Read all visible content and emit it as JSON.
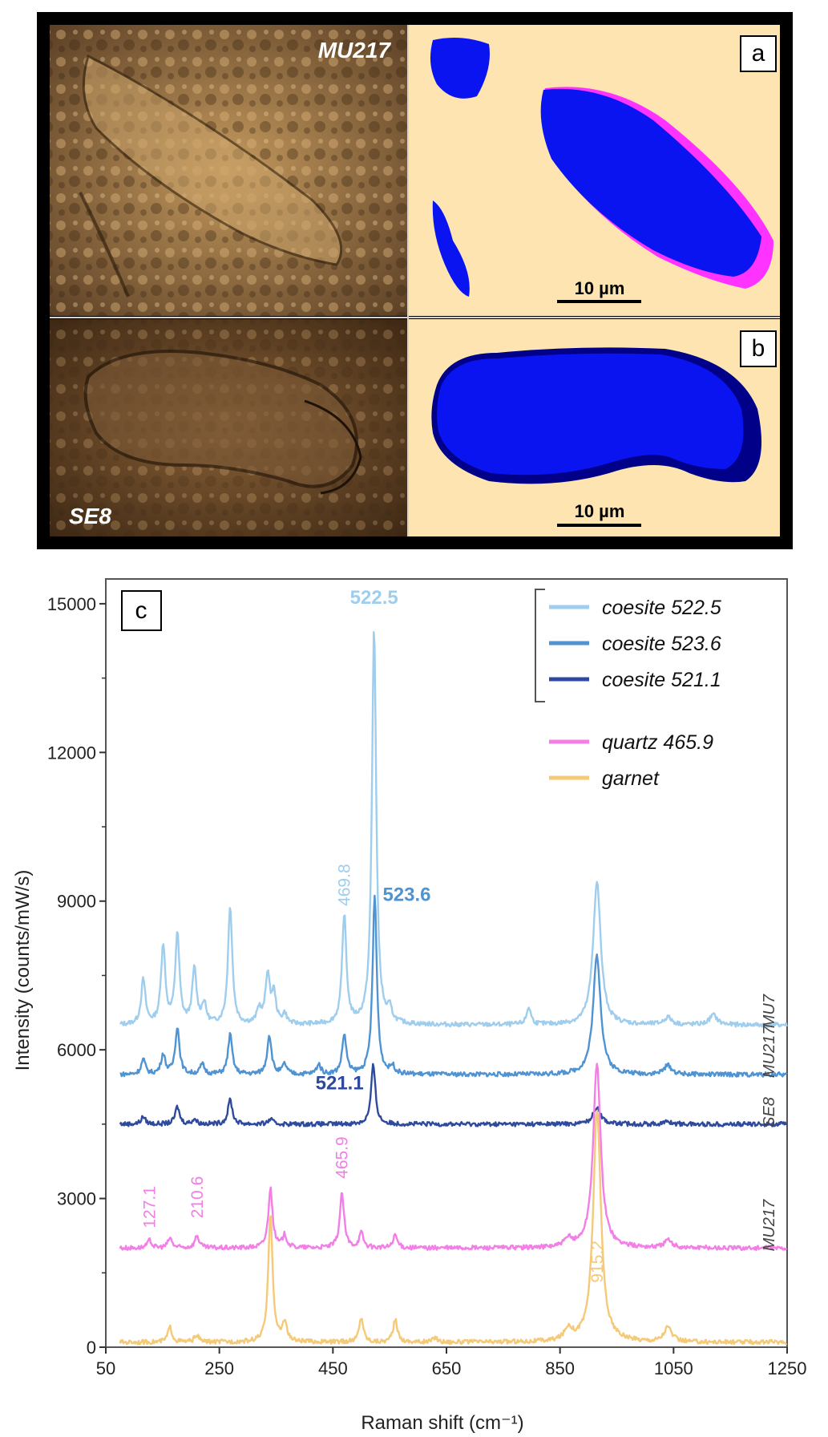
{
  "panels": {
    "a": {
      "letter": "a",
      "sample_label": "MU217",
      "scale_bar": "10 µm"
    },
    "b": {
      "letter": "b",
      "sample_label": "SE8",
      "scale_bar": "10 µm"
    },
    "c": {
      "letter": "c"
    }
  },
  "colors": {
    "coesite_522_5": "#9fcdee",
    "coesite_523_6": "#4f93d2",
    "coesite_521_1": "#2e4a9e",
    "quartz_465_9": "#f27ee6",
    "garnet": "#f4c977",
    "map_blue": "#0a14f0",
    "map_magenta": "#ff33ff",
    "map_background": "#fde4b1"
  },
  "chart_data": {
    "type": "line",
    "xlabel": "Raman shift (cm⁻¹)",
    "ylabel": "Intensity (counts/mW/s)",
    "xlim": [
      50,
      1250
    ],
    "ylim": [
      0,
      15500
    ],
    "x_ticks": [
      "50",
      "250",
      "450",
      "650",
      "850",
      "1050",
      "1250"
    ],
    "y_ticks": [
      "0",
      "3000",
      "6000",
      "9000",
      "12000",
      "15000"
    ],
    "legend": [
      {
        "label": "coesite 522.5",
        "color": "#9fcdee"
      },
      {
        "label": "coesite 523.6",
        "color": "#4f93d2"
      },
      {
        "label": "coesite 521.1",
        "color": "#2e4a9e"
      },
      {
        "label": "quartz 465.9",
        "color": "#f27ee6"
      },
      {
        "label": "garnet",
        "color": "#f4c977"
      }
    ],
    "series": [
      {
        "name": "coesite 522.5",
        "sample": "MU7",
        "color": "#9fcdee",
        "baseline": 6500,
        "peaks": [
          [
            116,
            900
          ],
          [
            151,
            1600
          ],
          [
            176,
            1800
          ],
          [
            206,
            1100
          ],
          [
            223,
            400
          ],
          [
            269,
            2400
          ],
          [
            320,
            300
          ],
          [
            335,
            1000
          ],
          [
            346,
            600
          ],
          [
            365,
            200
          ],
          [
            470,
            2200
          ],
          [
            522.5,
            8000
          ],
          [
            550,
            250
          ],
          [
            795,
            350
          ],
          [
            915,
            2900
          ],
          [
            1040,
            150
          ],
          [
            1120,
            200
          ]
        ]
      },
      {
        "name": "coesite 523.6",
        "sample": "MU217",
        "color": "#4f93d2",
        "baseline": 5500,
        "peaks": [
          [
            116,
            300
          ],
          [
            151,
            400
          ],
          [
            176,
            950
          ],
          [
            220,
            200
          ],
          [
            269,
            800
          ],
          [
            338,
            800
          ],
          [
            365,
            200
          ],
          [
            425,
            200
          ],
          [
            470,
            800
          ],
          [
            523.6,
            3600
          ],
          [
            555,
            150
          ],
          [
            915,
            2400
          ],
          [
            1040,
            180
          ]
        ]
      },
      {
        "name": "coesite 521.1",
        "sample": "SE8",
        "color": "#2e4a9e",
        "baseline": 4500,
        "peaks": [
          [
            116,
            150
          ],
          [
            176,
            350
          ],
          [
            206,
            100
          ],
          [
            269,
            500
          ],
          [
            340,
            100
          ],
          [
            521.1,
            1200
          ],
          [
            915,
            350
          ],
          [
            1040,
            50
          ]
        ]
      },
      {
        "name": "quartz 465.9",
        "sample": "MU217",
        "color": "#f27ee6",
        "baseline": 2000,
        "peaks": [
          [
            127.1,
            150
          ],
          [
            163,
            200
          ],
          [
            210.6,
            250
          ],
          [
            340,
            1200
          ],
          [
            365,
            250
          ],
          [
            465.9,
            1100
          ],
          [
            500,
            300
          ],
          [
            560,
            250
          ],
          [
            865,
            150
          ],
          [
            915,
            3700
          ],
          [
            1040,
            150
          ]
        ]
      },
      {
        "name": "garnet",
        "sample": "",
        "color": "#f4c977",
        "baseline": 100,
        "peaks": [
          [
            163,
            300
          ],
          [
            210,
            150
          ],
          [
            340,
            2600
          ],
          [
            365,
            400
          ],
          [
            500,
            500
          ],
          [
            560,
            450
          ],
          [
            630,
            100
          ],
          [
            865,
            250
          ],
          [
            915.2,
            4700
          ],
          [
            1040,
            300
          ]
        ]
      }
    ],
    "sample_labels": [
      "MU7",
      "MU217",
      "SE8",
      "MU217"
    ],
    "annotations": [
      {
        "text": "522.5",
        "series": "coesite 522.5",
        "x": 522.5,
        "y": 15000,
        "bold": true,
        "rotated": false
      },
      {
        "text": "469.8",
        "series": "coesite 522.5",
        "x": 469.8,
        "y": 8900,
        "bold": false,
        "rotated": true
      },
      {
        "text": "523.6",
        "series": "coesite 523.6",
        "x": 523.6,
        "y": 9000,
        "bold": true,
        "rotated": false
      },
      {
        "text": "521.1",
        "series": "coesite 521.1",
        "x": 521.1,
        "y": 5200,
        "bold": true,
        "rotated": false
      },
      {
        "text": "127.1",
        "series": "quartz 465.9",
        "x": 127.1,
        "y": 2400,
        "bold": false,
        "rotated": true
      },
      {
        "text": "210.6",
        "series": "quartz 465.9",
        "x": 210.6,
        "y": 2600,
        "bold": false,
        "rotated": true
      },
      {
        "text": "465.9",
        "series": "quartz 465.9",
        "x": 465.9,
        "y": 3400,
        "bold": false,
        "rotated": true
      },
      {
        "text": "915.2",
        "series": "garnet",
        "x": 915.2,
        "y": 1300,
        "bold": false,
        "rotated": true
      }
    ]
  }
}
